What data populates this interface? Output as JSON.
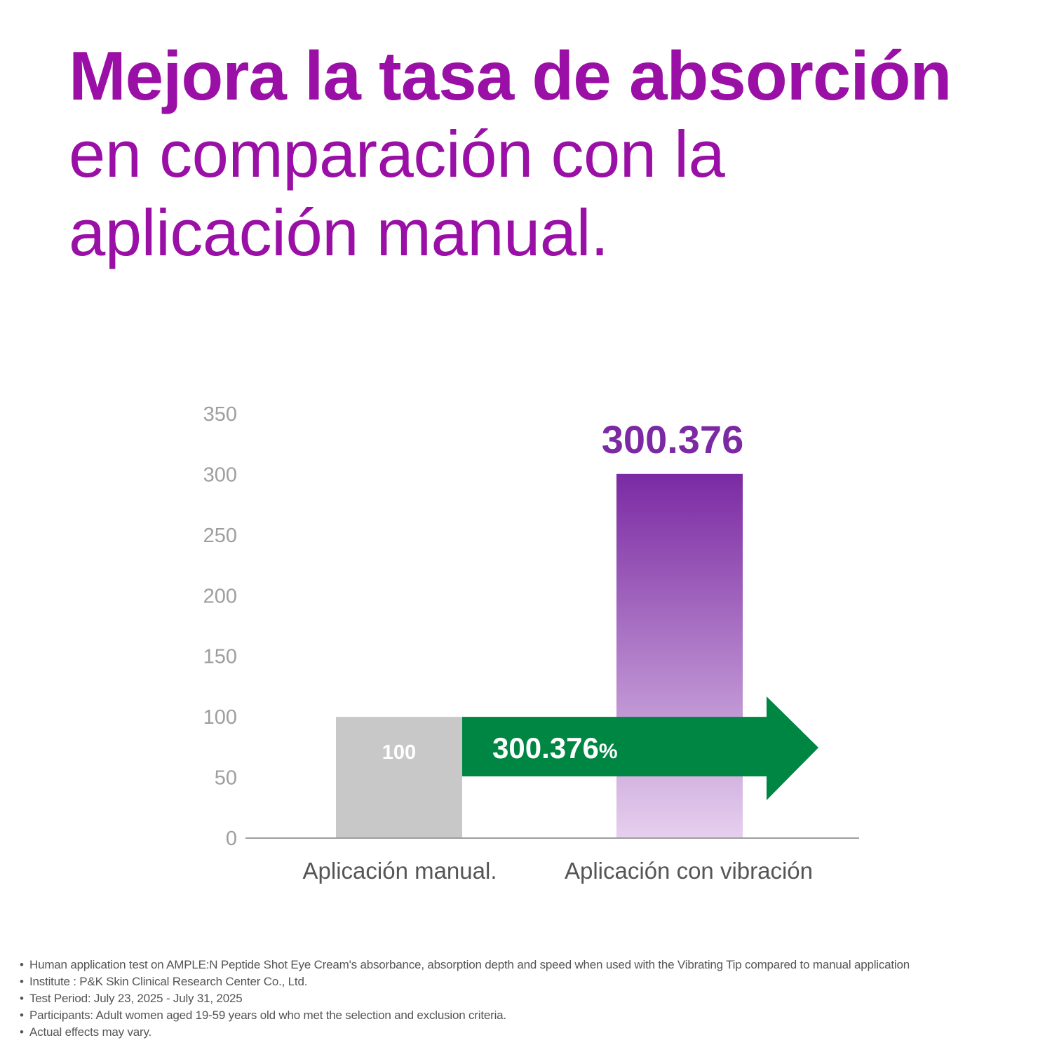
{
  "headline": {
    "bold": "Mejora la tasa de absorción",
    "light": "en comparación con la aplicación manual."
  },
  "chart_data": {
    "type": "bar",
    "title": "",
    "xlabel": "",
    "ylabel": "",
    "categories": [
      "Aplicación manual.",
      "Aplicación con vibración"
    ],
    "values": [
      100,
      300.376
    ],
    "bar_labels": [
      "100",
      "300.376"
    ],
    "ylim": [
      0,
      350
    ],
    "yticks": [
      0,
      50,
      100,
      150,
      200,
      250,
      300,
      350
    ],
    "grid": false,
    "annotation": {
      "text": "300.376%",
      "color": "#008643"
    },
    "colors": {
      "manual": "#c8c8c8",
      "vibration_top": "#7b2aa3",
      "vibration_bottom": "#e6d0ee"
    }
  },
  "footnotes": [
    "Human application test on AMPLE:N Peptide Shot Eye Cream's absorbance, absorption depth and speed when used with the Vibrating Tip compared to manual application",
    "Institute : P&K Skin Clinical Research Center Co., Ltd.",
    "Test Period: July 23, 2025 - July 31, 2025",
    "Participants: Adult women aged 19-59 years old who met the selection and exclusion criteria.",
    "Actual effects may vary."
  ]
}
